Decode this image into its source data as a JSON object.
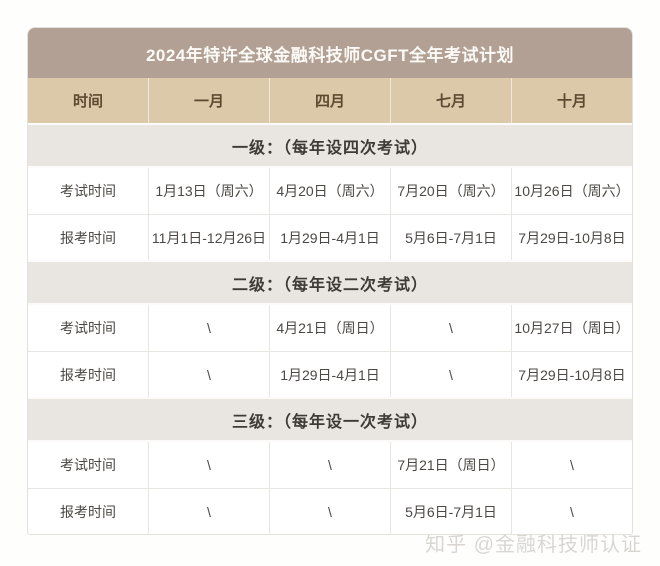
{
  "page": {
    "title": "2024年特许全球金融科技师CGFT全年考试计划",
    "watermark": "知乎 @金融科技师认证"
  },
  "table": {
    "columns": [
      "时间",
      "一月",
      "四月",
      "七月",
      "十月"
    ],
    "sections": [
      {
        "header": "一级：（每年设四次考试）",
        "rows": [
          {
            "label": "考试时间",
            "cells": [
              "1月13日（周六）",
              "4月20日（周六）",
              "7月20日（周六）",
              "10月26日（周六）"
            ]
          },
          {
            "label": "报考时间",
            "cells": [
              "11月1日-12月26日",
              "1月29日-4月1日",
              "5月6日-7月1日",
              "7月29日-10月8日"
            ]
          }
        ]
      },
      {
        "header": "二级：（每年设二次考试）",
        "rows": [
          {
            "label": "考试时间",
            "cells": [
              "\\",
              "4月21日（周日）",
              "\\",
              "10月27日（周日）"
            ]
          },
          {
            "label": "报考时间",
            "cells": [
              "\\",
              "1月29日-4月1日",
              "\\",
              "7月29日-10月8日"
            ]
          }
        ]
      },
      {
        "header": "三级：（每年设一次考试）",
        "rows": [
          {
            "label": "考试时间",
            "cells": [
              "\\",
              "\\",
              "7月21日（周日）",
              "\\"
            ]
          },
          {
            "label": "报考时间",
            "cells": [
              "\\",
              "\\",
              "5月6日-7月1日",
              "\\"
            ]
          }
        ]
      }
    ]
  },
  "colors": {
    "title_bar_bg": "#b1a093",
    "title_text": "#fcfaf7",
    "month_header_bg": "#dbc9aa",
    "month_header_text": "#5e4a30",
    "section_header_bg": "#e9e6e1",
    "cell_text": "#4b4845",
    "border": "#e8e6e3",
    "watermark_text": "#d9d6d2"
  }
}
